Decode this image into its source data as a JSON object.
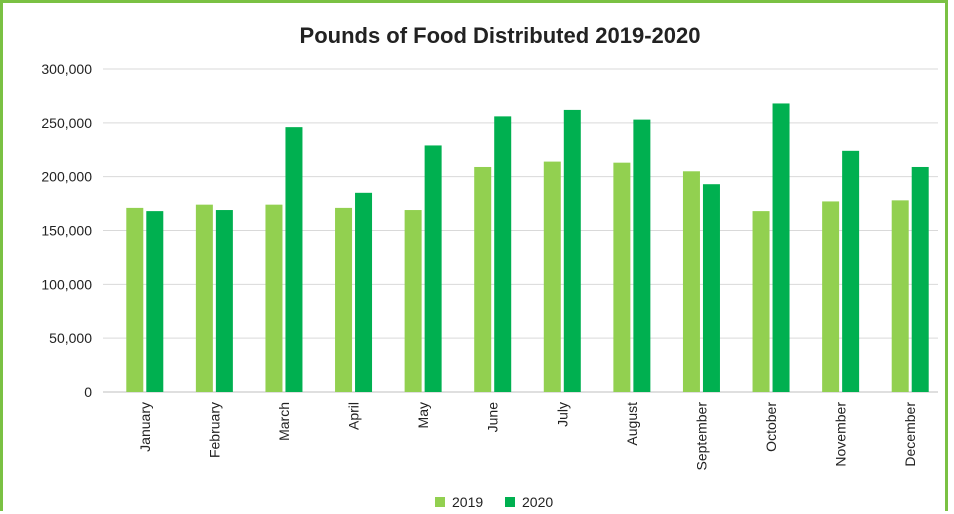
{
  "chart_data": {
    "type": "bar",
    "title": "Pounds of Food Distributed 2019-2020",
    "xlabel": "",
    "ylabel": "",
    "ylim": [
      0,
      300000
    ],
    "yticks": [
      0,
      50000,
      100000,
      150000,
      200000,
      250000,
      300000
    ],
    "ytick_labels": [
      "0",
      "50,000",
      "100,000",
      "150,000",
      "200,000",
      "250,000",
      "300,000"
    ],
    "categories": [
      "January",
      "February",
      "March",
      "April",
      "May",
      "June",
      "July",
      "August",
      "September",
      "October",
      "November",
      "December"
    ],
    "series": [
      {
        "name": "2019",
        "color": "#92d050",
        "values": [
          171000,
          174000,
          174000,
          171000,
          169000,
          209000,
          214000,
          213000,
          205000,
          168000,
          177000,
          178000
        ]
      },
      {
        "name": "2020",
        "color": "#00b050",
        "values": [
          168000,
          169000,
          246000,
          185000,
          229000,
          256000,
          262000,
          253000,
          193000,
          268000,
          224000,
          209000
        ]
      }
    ],
    "grid": true,
    "legend_position": "bottom"
  },
  "colors": {
    "border": "#7ac143",
    "grid": "#d9d9d9",
    "axis": "#bfbfbf"
  }
}
